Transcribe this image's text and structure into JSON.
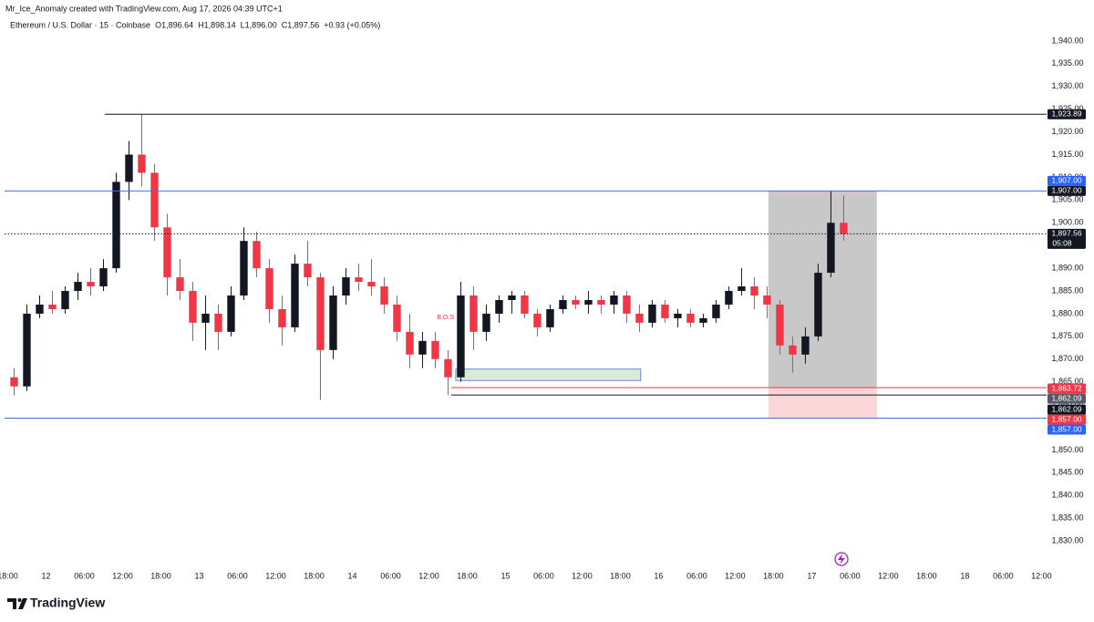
{
  "attribution": "Mr_Ice_Anomaly created with TradingView.com, Aug 17, 2026 04:39 UTC+1",
  "brand": "TradingView",
  "chart_data": {
    "type": "candlestick",
    "symbol": "Ethereum / U.S. Dollar · 15 · Coinbase",
    "legend_values": [
      "O1,896.64",
      "H1,898.14",
      "L1,896.00",
      "C1,897.56",
      "+0.93 (+0.05%)"
    ],
    "up_color": "#131722",
    "down_color": "#f23645",
    "x": [
      1,
      3,
      5,
      7,
      9,
      11,
      13,
      15,
      17,
      19,
      21,
      23,
      25,
      27,
      29,
      31,
      33,
      35,
      37,
      39,
      41,
      43,
      45,
      47,
      49,
      51,
      53,
      55,
      57,
      59,
      61,
      63,
      65,
      67,
      69,
      71,
      73,
      75,
      77,
      79,
      81,
      83,
      85,
      87,
      89,
      91,
      93,
      95,
      97,
      99,
      101,
      103,
      105,
      107,
      109,
      111,
      113,
      115,
      117,
      119,
      121,
      123,
      125,
      127,
      129,
      131
    ],
    "open": [
      1866,
      1864,
      1880,
      1882,
      1881,
      1885,
      1887,
      1886,
      1890,
      1909,
      1915,
      1911,
      1899,
      1888,
      1885,
      1878,
      1880,
      1876,
      1884,
      1896,
      1890,
      1881,
      1877,
      1891,
      1888,
      1872,
      1884,
      1888,
      1887,
      1886,
      1882,
      1876,
      1871,
      1874,
      1870,
      1866,
      1884,
      1876,
      1880,
      1883,
      1884,
      1880,
      1877,
      1881,
      1883,
      1882,
      1883,
      1882,
      1884,
      1880,
      1878,
      1882,
      1879,
      1880,
      1878,
      1879,
      1882,
      1885,
      1886,
      1884,
      1882,
      1873,
      1871,
      1875,
      1889,
      1900
    ],
    "high": [
      1868,
      1882,
      1884,
      1885,
      1886,
      1889,
      1890,
      1892,
      1911,
      1918,
      1923.89,
      1913,
      1902,
      1892,
      1887,
      1884,
      1882,
      1886,
      1899,
      1898,
      1892,
      1884,
      1893,
      1896,
      1889,
      1886,
      1890,
      1891,
      1892,
      1888,
      1884,
      1880,
      1876,
      1876,
      1872,
      1887,
      1886,
      1882,
      1884,
      1885,
      1885,
      1881,
      1882,
      1884,
      1884,
      1885,
      1884,
      1885,
      1885,
      1882,
      1883,
      1883,
      1881,
      1881,
      1880,
      1883,
      1886,
      1890,
      1888,
      1886,
      1883,
      1875,
      1877,
      1891,
      1907,
      1906
    ],
    "low": [
      1862,
      1863,
      1879,
      1880,
      1880,
      1883,
      1884,
      1885,
      1889,
      1905,
      1908,
      1896,
      1884,
      1883,
      1874,
      1872,
      1872,
      1875,
      1883,
      1888,
      1878,
      1873,
      1876,
      1886,
      1861,
      1870,
      1882,
      1885,
      1884,
      1880,
      1874,
      1868,
      1868,
      1868,
      1862.09,
      1865,
      1872,
      1874,
      1878,
      1880,
      1879,
      1875,
      1876,
      1880,
      1881,
      1880,
      1880,
      1880,
      1878,
      1876,
      1877,
      1878,
      1877,
      1877,
      1877,
      1878,
      1881,
      1884,
      1881,
      1879,
      1871,
      1867,
      1869,
      1874,
      1888,
      1896
    ],
    "close": [
      1864,
      1880,
      1882,
      1881,
      1885,
      1887,
      1886,
      1890,
      1909,
      1915,
      1911,
      1899,
      1888,
      1885,
      1878,
      1880,
      1876,
      1884,
      1896,
      1890,
      1881,
      1877,
      1891,
      1888,
      1872,
      1884,
      1888,
      1887,
      1886,
      1882,
      1876,
      1871,
      1874,
      1870,
      1866,
      1884,
      1876,
      1880,
      1883,
      1884,
      1880,
      1877,
      1881,
      1883,
      1882,
      1883,
      1882,
      1884,
      1880,
      1878,
      1882,
      1879,
      1880,
      1878,
      1879,
      1882,
      1885,
      1886,
      1884,
      1882,
      1873,
      1871,
      1875,
      1889,
      1900,
      1897.56
    ],
    "xlim": [
      -0.5,
      162.8
    ],
    "xticks": [
      {
        "value": 0,
        "label": "18:00"
      },
      {
        "value": 6,
        "label": "12"
      },
      {
        "value": 12,
        "label": "06:00"
      },
      {
        "value": 18,
        "label": "12:00"
      },
      {
        "value": 24,
        "label": "18:00"
      },
      {
        "value": 30,
        "label": "13"
      },
      {
        "value": 36,
        "label": "06:00"
      },
      {
        "value": 42,
        "label": "12:00"
      },
      {
        "value": 48,
        "label": "18:00"
      },
      {
        "value": 54,
        "label": "14"
      },
      {
        "value": 60,
        "label": "06:00"
      },
      {
        "value": 66,
        "label": "12:00"
      },
      {
        "value": 72,
        "label": "18:00"
      },
      {
        "value": 78,
        "label": "15"
      },
      {
        "value": 84,
        "label": "06:00"
      },
      {
        "value": 90,
        "label": "12:00"
      },
      {
        "value": 96,
        "label": "18:00"
      },
      {
        "value": 102,
        "label": "16"
      },
      {
        "value": 108,
        "label": "06:00"
      },
      {
        "value": 114,
        "label": "12:00"
      },
      {
        "value": 120,
        "label": "18:00"
      },
      {
        "value": 126,
        "label": "17"
      },
      {
        "value": 132,
        "label": "06:00"
      },
      {
        "value": 138,
        "label": "12:00"
      },
      {
        "value": 144,
        "label": "18:00"
      },
      {
        "value": 150,
        "label": "18"
      },
      {
        "value": 156,
        "label": "06:00"
      },
      {
        "value": 162,
        "label": "12:00"
      }
    ],
    "ylim": [
      1825,
      1943
    ],
    "yticks": [
      {
        "value": 1830,
        "label": "1,830.00"
      },
      {
        "value": 1835,
        "label": "1,835.00"
      },
      {
        "value": 1840,
        "label": "1,840.00"
      },
      {
        "value": 1845,
        "label": "1,845.00"
      },
      {
        "value": 1850,
        "label": "1,850.00"
      },
      {
        "value": 1855,
        "label": "1,855.00"
      },
      {
        "value": 1860,
        "label": "1,860.00"
      },
      {
        "value": 1865,
        "label": "1,865.00"
      },
      {
        "value": 1870,
        "label": "1,870.00"
      },
      {
        "value": 1875,
        "label": "1,875.00"
      },
      {
        "value": 1880,
        "label": "1,880.00"
      },
      {
        "value": 1885,
        "label": "1,885.00"
      },
      {
        "value": 1890,
        "label": "1,890.00"
      },
      {
        "value": 1895,
        "label": "1,895.00"
      },
      {
        "value": 1900,
        "label": "1,900.00"
      },
      {
        "value": 1905,
        "label": "1,905.00"
      },
      {
        "value": 1910,
        "label": "1,910.00"
      },
      {
        "value": 1915,
        "label": "1,915.00"
      },
      {
        "value": 1920,
        "label": "1,920.00"
      },
      {
        "value": 1925,
        "label": "1,925.00"
      },
      {
        "value": 1930,
        "label": "1,930.00"
      },
      {
        "value": 1935,
        "label": "1,935.00"
      },
      {
        "value": 1940,
        "label": "1,940.00"
      }
    ],
    "levels": [
      {
        "value": 1923.89,
        "start": 15.2,
        "color": "#131722",
        "style": "solid"
      },
      {
        "value": 1907.0,
        "start": -0.5,
        "color": "#4a6fd8",
        "style": "solid"
      },
      {
        "value": 1897.56,
        "start": -0.5,
        "color": "#131722",
        "style": "dotted"
      },
      {
        "value": 1863.72,
        "start": 69.5,
        "color": "#f23645",
        "style": "solid"
      },
      {
        "value": 1862.09,
        "start": 69.5,
        "color": "#131722",
        "style": "solid"
      },
      {
        "value": 1857.0,
        "start": -0.5,
        "color": "#4a6fd8",
        "style": "solid"
      }
    ],
    "boxes": [
      {
        "x0": 70.2,
        "x1": 99.2,
        "y0": 1865.3,
        "y1": 1867.8,
        "fill": "#d9ecd5",
        "stroke": "#4a6fd8"
      },
      {
        "x0": 119.2,
        "x1": 136.2,
        "y0": 1863.72,
        "y1": 1907,
        "fill": "#c8c8c8",
        "stroke": "none"
      },
      {
        "x0": 119.2,
        "x1": 136.2,
        "y0": 1857,
        "y1": 1863.72,
        "fill": "#fbd5d8",
        "stroke": "none"
      }
    ],
    "annotations": [
      {
        "text": "B.O.S",
        "x": 68.6,
        "y": 1879.2,
        "color": "#f23645"
      }
    ],
    "price_tags": [
      {
        "value": 1923.89,
        "label": "1,923.89",
        "color": "#131722"
      },
      {
        "value": 1907.0,
        "label": "1,907.00",
        "color": "#2962ff"
      },
      {
        "value": 1907.0,
        "label": "1,907.00",
        "color": "#131722"
      },
      {
        "value": 1897.56,
        "label": "1,897.56",
        "color": "#131722"
      },
      {
        "value": 1863.72,
        "label": "1,863.72",
        "color": "#f23645"
      },
      {
        "value": 1862.09,
        "label": "1,862.09",
        "color": "#555a66"
      },
      {
        "value": 1862.09,
        "label": "1,862.09",
        "color": "#131722"
      },
      {
        "value": 1857.0,
        "label": "1,857.00",
        "color": "#f23645"
      },
      {
        "value": 1857.0,
        "label": "1,857.00",
        "color": "#2962ff"
      }
    ],
    "countdown": "05:08"
  }
}
